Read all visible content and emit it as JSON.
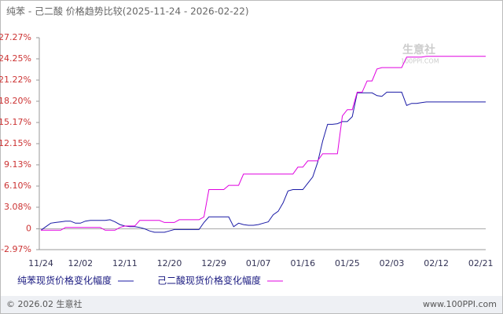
{
  "chart_data": {
    "type": "line",
    "title": "纯苯 - 己二酸 价格趋势比较(2025-11-24 - 2026-02-22)",
    "categories": [
      "11/24",
      null,
      null,
      null,
      null,
      null,
      null,
      null,
      "12/02",
      null,
      null,
      null,
      null,
      null,
      null,
      null,
      null,
      "12/11",
      null,
      null,
      null,
      null,
      null,
      null,
      null,
      null,
      "12/20",
      null,
      null,
      null,
      null,
      null,
      null,
      null,
      null,
      "12/29",
      null,
      null,
      null,
      null,
      null,
      null,
      null,
      null,
      "01/07",
      null,
      null,
      null,
      null,
      null,
      null,
      null,
      null,
      "01/16",
      null,
      null,
      null,
      null,
      null,
      null,
      null,
      null,
      "01/25",
      null,
      null,
      null,
      null,
      null,
      null,
      null,
      null,
      "02/03",
      null,
      null,
      null,
      null,
      null,
      null,
      null,
      null,
      "02/12",
      null,
      null,
      null,
      null,
      null,
      null,
      null,
      null,
      "02/21",
      null
    ],
    "series": [
      {
        "name": "纯苯现货价格变化幅度",
        "color": "#1a1aa6",
        "values": [
          -0.2,
          0.3,
          0.8,
          0.9,
          1.0,
          1.1,
          1.1,
          0.8,
          0.8,
          1.1,
          1.2,
          1.2,
          1.2,
          1.2,
          1.3,
          1.0,
          0.6,
          0.4,
          0.3,
          0.3,
          0.2,
          0.0,
          -0.3,
          -0.5,
          -0.5,
          -0.5,
          -0.3,
          -0.1,
          -0.1,
          -0.1,
          -0.1,
          -0.1,
          -0.1,
          0.9,
          1.7,
          1.7,
          1.7,
          1.7,
          1.7,
          0.3,
          0.8,
          0.6,
          0.5,
          0.5,
          0.6,
          0.8,
          1.0,
          2.0,
          2.5,
          3.7,
          5.4,
          5.6,
          5.6,
          5.6,
          6.5,
          7.4,
          9.5,
          12.5,
          14.9,
          14.9,
          15.0,
          15.3,
          15.3,
          16.0,
          19.4,
          19.4,
          19.4,
          19.4,
          19.0,
          18.9,
          19.5,
          19.5,
          19.5,
          19.5,
          17.6,
          17.9,
          17.9,
          18.0,
          18.1,
          18.1,
          18.1,
          18.1,
          18.1,
          18.1,
          18.1,
          18.1,
          18.1,
          18.1,
          18.1,
          18.1,
          18.1
        ]
      },
      {
        "name": "己二酸现货价格变化幅度",
        "color": "#e000e0",
        "values": [
          -0.2,
          -0.2,
          -0.2,
          -0.2,
          -0.2,
          0.2,
          0.2,
          0.2,
          0.2,
          0.2,
          0.2,
          0.2,
          0.2,
          -0.2,
          -0.2,
          -0.2,
          0.2,
          0.4,
          0.4,
          0.4,
          1.2,
          1.2,
          1.2,
          1.2,
          1.2,
          0.9,
          0.9,
          0.9,
          1.3,
          1.3,
          1.3,
          1.3,
          1.3,
          1.7,
          5.6,
          5.6,
          5.6,
          5.6,
          6.2,
          6.2,
          6.2,
          7.8,
          7.8,
          7.8,
          7.8,
          7.8,
          7.8,
          7.8,
          7.8,
          7.8,
          7.8,
          7.8,
          8.8,
          8.8,
          9.7,
          9.7,
          9.7,
          10.7,
          10.7,
          10.7,
          10.7,
          16.1,
          17.0,
          17.0,
          19.5,
          19.5,
          21.1,
          21.1,
          22.8,
          23.0,
          23.0,
          23.0,
          23.0,
          23.0,
          24.5,
          24.5,
          24.5,
          24.5,
          24.6,
          24.6,
          24.6,
          24.6,
          24.6,
          24.6,
          24.6,
          24.6,
          24.6,
          24.6,
          24.6,
          24.6,
          24.6
        ]
      }
    ],
    "ylim": [
      -2.97,
      27.27
    ],
    "yticks": [
      {
        "value": -2.97,
        "label": "-2.97%"
      },
      0,
      {
        "value": 3.08,
        "label": "3.08%"
      },
      {
        "value": 6.1,
        "label": "6.10%"
      },
      {
        "value": 9.13,
        "label": "9.13%"
      },
      {
        "value": 12.15,
        "label": "12.15%"
      },
      {
        "value": 15.17,
        "label": "15.17%"
      },
      {
        "value": 18.2,
        "label": "18.20%"
      },
      {
        "value": 21.22,
        "label": "21.22%"
      },
      {
        "value": 24.25,
        "label": "24.25%"
      },
      {
        "value": 27.27,
        "label": "27.27%"
      }
    ],
    "grid": false,
    "watermark": {
      "brand": "生意社",
      "site": "100PPI.COM"
    },
    "footer": {
      "copyright": "© 2026.02 生意社",
      "site": "www.100PPI.com"
    }
  }
}
